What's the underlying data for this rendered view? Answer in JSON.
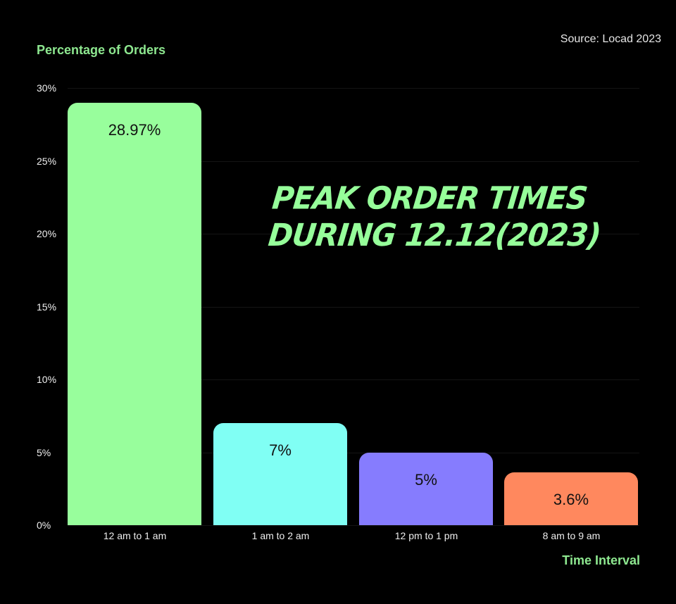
{
  "source": "Source: Locad 2023",
  "title_line1": "PEAK ORDER TIMES",
  "title_line2": "DURING 12.12(2023)",
  "chart_data": {
    "type": "bar",
    "title": "Peak Order Times During 12.12(2023)",
    "xlabel": "Time Interval",
    "ylabel": "Percentage of Orders",
    "categories": [
      "12 am to 1 am",
      "1 am to 2 am",
      "12 pm to 1 pm",
      "8 am to 9 am"
    ],
    "values": [
      28.97,
      7,
      5,
      3.6
    ],
    "value_labels": [
      "28.97%",
      "7%",
      "5%",
      "3.6%"
    ],
    "colors": [
      "#98fe9c",
      "#80fff4",
      "#867cfe",
      "#ff885e"
    ],
    "ylim": [
      0,
      30
    ],
    "yticks": [
      "0%",
      "5%",
      "10%",
      "15%",
      "20%",
      "25%",
      "30%"
    ],
    "grid": true,
    "source": "Source: Locad 2023"
  }
}
